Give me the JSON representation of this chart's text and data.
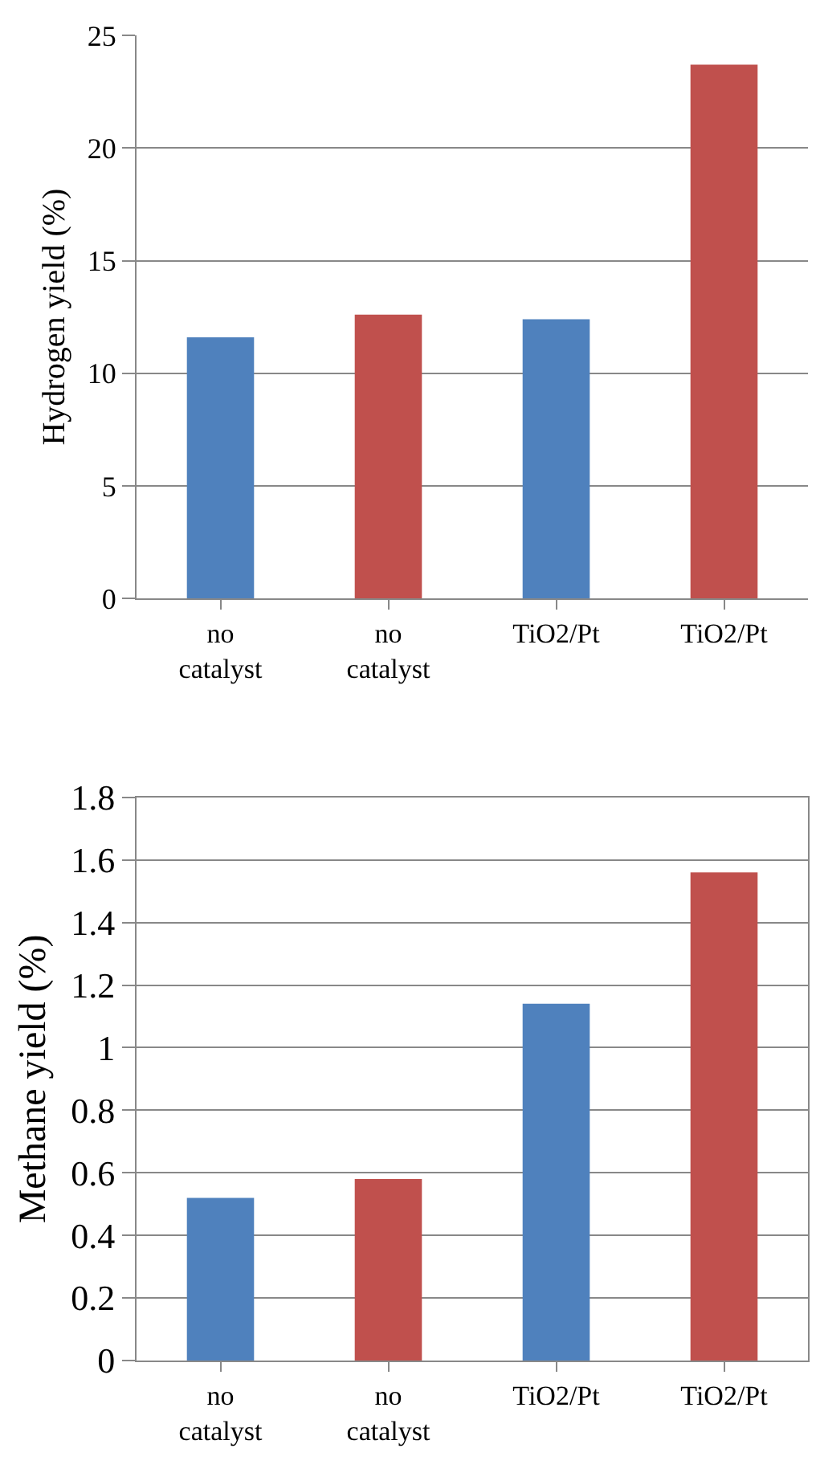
{
  "chart_data": [
    {
      "type": "bar",
      "ylabel": "Hydrogen yield (%)",
      "categories": [
        "no\ncatalyst",
        "no\ncatalyst",
        "TiO2/Pt",
        "TiO2/Pt"
      ],
      "values": [
        11.6,
        12.6,
        12.4,
        23.7
      ],
      "colors": [
        "#4f81bd",
        "#c0504d",
        "#4f81bd",
        "#c0504d"
      ],
      "ylim": [
        0,
        25
      ],
      "yticks": [
        0,
        5,
        10,
        15,
        20,
        25
      ],
      "grid": "y"
    },
    {
      "type": "bar",
      "ylabel": "Methane yield (%)",
      "categories": [
        "no\ncatalyst",
        "no\ncatalyst",
        "TiO2/Pt",
        "TiO2/Pt"
      ],
      "values": [
        0.52,
        0.58,
        1.14,
        1.56
      ],
      "colors": [
        "#4f81bd",
        "#c0504d",
        "#4f81bd",
        "#c0504d"
      ],
      "ylim": [
        0,
        1.8
      ],
      "yticks": [
        0,
        0.2,
        0.4,
        0.6,
        0.8,
        1,
        1.2,
        1.4,
        1.6,
        1.8
      ],
      "grid": "y"
    }
  ]
}
